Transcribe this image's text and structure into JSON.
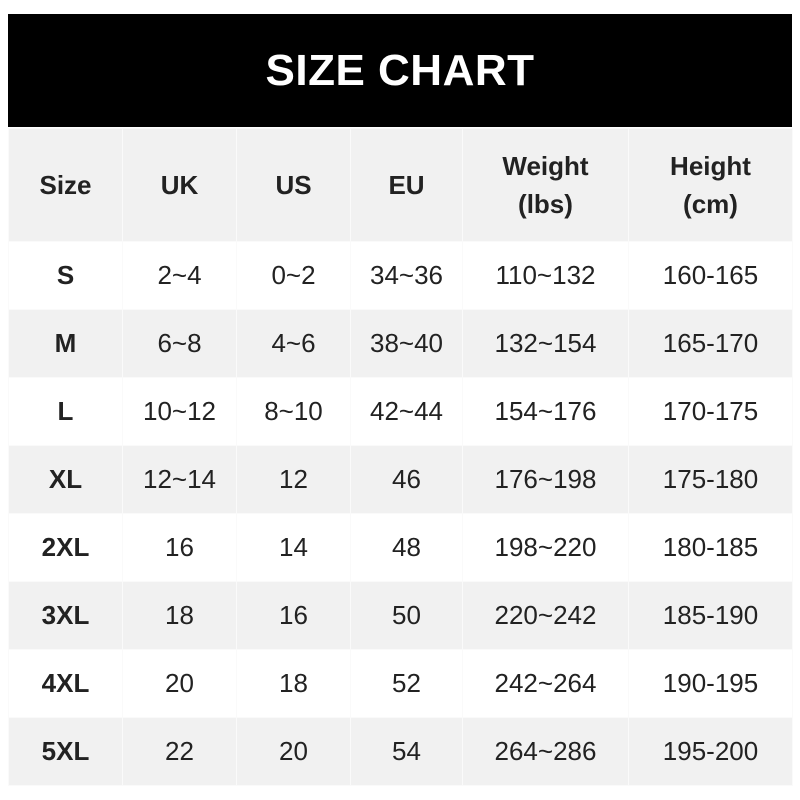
{
  "title": "SIZE CHART",
  "headers": [
    {
      "line1": "Size",
      "line2": ""
    },
    {
      "line1": "UK",
      "line2": ""
    },
    {
      "line1": "US",
      "line2": ""
    },
    {
      "line1": "EU",
      "line2": ""
    },
    {
      "line1": "Weight",
      "line2": "(lbs)"
    },
    {
      "line1": "Height",
      "line2": "(cm)"
    }
  ],
  "rows": [
    [
      "S",
      "2~4",
      "0~2",
      "34~36",
      "110~132",
      "160-165"
    ],
    [
      "M",
      "6~8",
      "4~6",
      "38~40",
      "132~154",
      "165-170"
    ],
    [
      "L",
      "10~12",
      "8~10",
      "42~44",
      "154~176",
      "170-175"
    ],
    [
      "XL",
      "12~14",
      "12",
      "46",
      "176~198",
      "175-180"
    ],
    [
      "2XL",
      "16",
      "14",
      "48",
      "198~220",
      "180-185"
    ],
    [
      "3XL",
      "18",
      "16",
      "50",
      "220~242",
      "185-190"
    ],
    [
      "4XL",
      "20",
      "18",
      "52",
      "242~264",
      "190-195"
    ],
    [
      "5XL",
      "22",
      "20",
      "54",
      "264~286",
      "195-200"
    ]
  ]
}
